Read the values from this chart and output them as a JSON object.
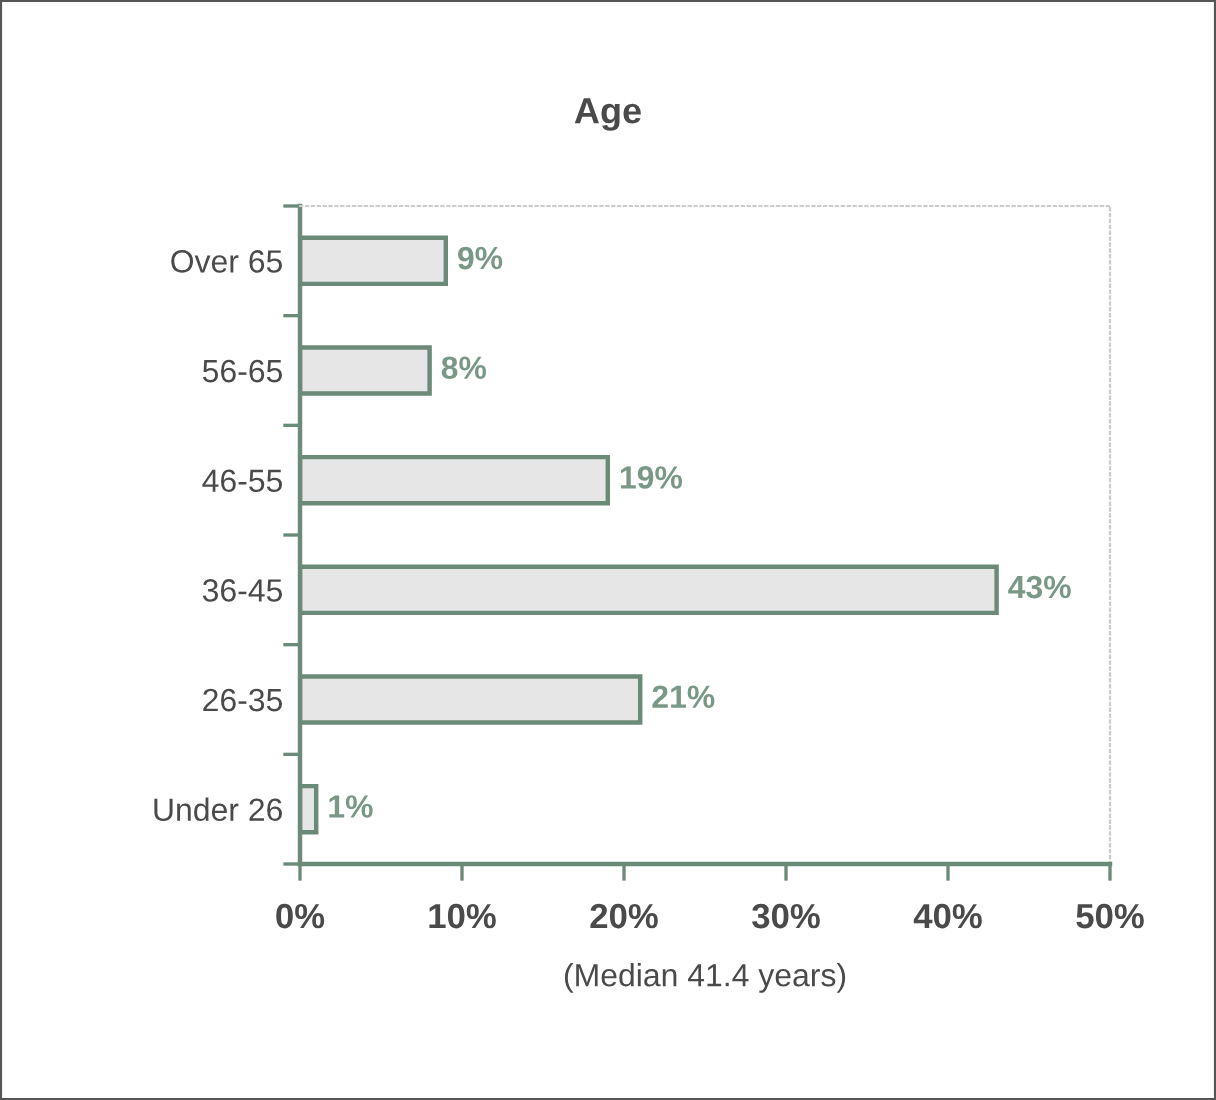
{
  "chart_data": {
    "type": "bar",
    "orientation": "horizontal",
    "title": "Age",
    "xlabel": "(Median 41.4 years)",
    "categories": [
      "Over 65",
      "56-65",
      "46-55",
      "36-45",
      "26-35",
      "Under 26"
    ],
    "values": [
      9,
      8,
      19,
      43,
      21,
      1
    ],
    "color": "#e6e6e6",
    "value_labels": [
      "9%",
      "8%",
      "19%",
      "43%",
      "21%",
      "1%"
    ],
    "xlim": [
      0,
      50
    ],
    "xticks": [
      {
        "value": 0,
        "label": "0%"
      },
      {
        "value": 10,
        "label": "10%"
      },
      {
        "value": 20,
        "label": "20%"
      },
      {
        "value": 30,
        "label": "30%"
      },
      {
        "value": 40,
        "label": "40%"
      },
      {
        "value": 50,
        "label": "50%"
      }
    ],
    "grid": false,
    "legend": false
  }
}
